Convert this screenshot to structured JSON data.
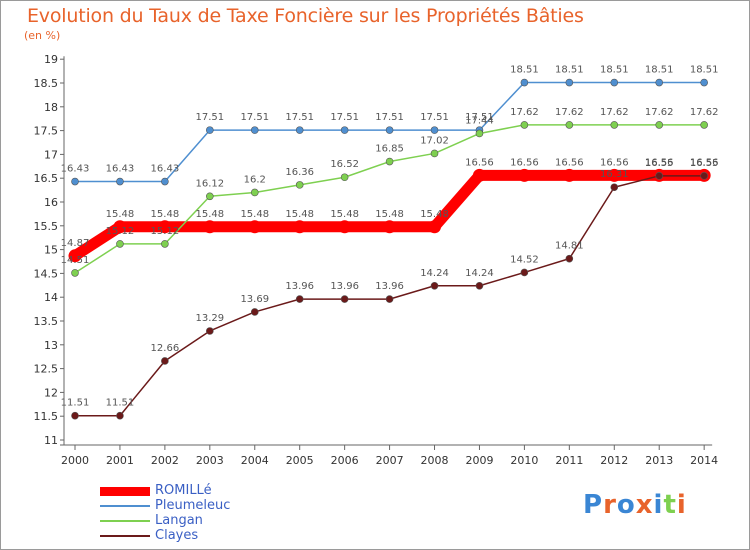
{
  "chart_data": {
    "type": "line",
    "title": "Evolution du Taux de Taxe Foncière sur les Propriétés Bâties",
    "subtitle": "(en %)",
    "x": [
      "2000",
      "2001",
      "2002",
      "2003",
      "2004",
      "2005",
      "2006",
      "2007",
      "2008",
      "2009",
      "2010",
      "2011",
      "2012",
      "2013",
      "2014"
    ],
    "ylim": [
      11,
      19
    ],
    "yticks": [
      "11",
      "11.5",
      "12",
      "12.5",
      "13",
      "13.5",
      "14",
      "14.5",
      "15",
      "15.5",
      "16",
      "16.5",
      "17",
      "17.5",
      "18",
      "18.5",
      "19"
    ],
    "grid": false,
    "legend_position": "bottom-left",
    "series": [
      {
        "name": "ROMILLé",
        "color": "#ff0000",
        "values": [
          14.87,
          15.48,
          15.48,
          15.48,
          15.48,
          15.48,
          15.48,
          15.48,
          15.48,
          16.56,
          16.56,
          16.56,
          16.56,
          16.56,
          16.56
        ],
        "labels": [
          "14.87",
          "15.48",
          "15.48",
          "15.48",
          "15.48",
          "15.48",
          "15.48",
          "15.48",
          "15.48",
          "16.56",
          "16.56",
          "16.56",
          "16.56",
          "16.56",
          "16.56"
        ]
      },
      {
        "name": "Pleumeleuc",
        "color": "#4f8fd0",
        "values": [
          16.43,
          16.43,
          16.43,
          17.51,
          17.51,
          17.51,
          17.51,
          17.51,
          17.51,
          17.51,
          18.51,
          18.51,
          18.51,
          18.51,
          18.51
        ],
        "labels": [
          "16.43",
          "16.43",
          "16.43",
          "17.51",
          "17.51",
          "17.51",
          "17.51",
          "17.51",
          "17.51",
          "17.51",
          "18.51",
          "18.51",
          "18.51",
          "18.51",
          "18.51"
        ]
      },
      {
        "name": "Langan",
        "color": "#7ed050",
        "values": [
          14.51,
          15.12,
          15.12,
          16.12,
          16.2,
          16.36,
          16.52,
          16.85,
          17.02,
          17.44,
          17.62,
          17.62,
          17.62,
          17.62,
          17.62
        ],
        "labels": [
          "14.51",
          "15.12",
          "15.12",
          "16.12",
          "16.2",
          "16.36",
          "16.52",
          "16.85",
          "17.02",
          "17.44",
          "17.62",
          "17.62",
          "17.62",
          "17.62",
          "17.62"
        ]
      },
      {
        "name": "Clayes",
        "color": "#6b1a1a",
        "values": [
          11.51,
          11.51,
          12.66,
          13.29,
          13.69,
          13.96,
          13.96,
          13.96,
          14.24,
          14.24,
          14.52,
          14.81,
          16.31,
          16.55,
          16.55
        ],
        "labels": [
          "11.51",
          "11.51",
          "12.66",
          "13.29",
          "13.69",
          "13.96",
          "13.96",
          "13.96",
          "14.24",
          "14.24",
          "14.52",
          "14.81",
          "16.31",
          "16.55",
          "16.55"
        ]
      }
    ]
  },
  "logo": {
    "text": "Proxiti",
    "colors": [
      "#3a86d4",
      "#e8632b",
      "#3a86d4",
      "#e8632b",
      "#3a86d4",
      "#7ed050",
      "#e8632b"
    ]
  }
}
